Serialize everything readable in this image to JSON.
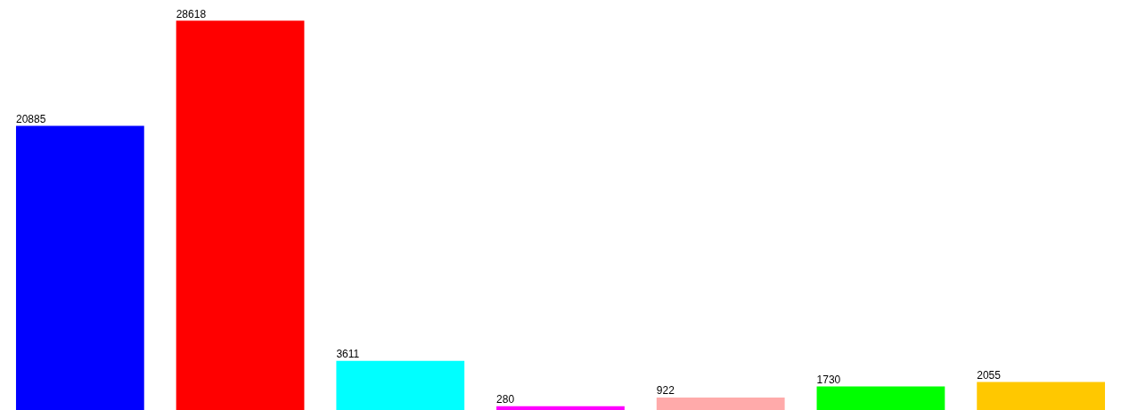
{
  "chart_data": {
    "type": "bar",
    "categories": [
      null,
      null,
      null,
      null,
      null,
      null,
      null
    ],
    "values": [
      20885,
      28618,
      3611,
      280,
      922,
      1730,
      2055
    ],
    "colors": [
      "#0000ff",
      "#ff0000",
      "#00ffff",
      "#ff00ff",
      "#ffaaaa",
      "#00ff00",
      "#ffc800"
    ],
    "data_labels": true,
    "legend": false
  }
}
